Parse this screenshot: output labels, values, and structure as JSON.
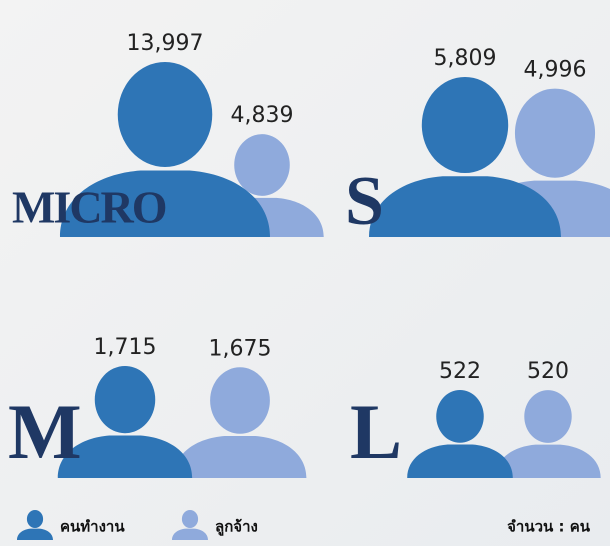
{
  "chart_data": {
    "type": "pictograph",
    "categories": [
      "Micro",
      "S",
      "M",
      "L"
    ],
    "series": [
      {
        "name": "คนทำงาน",
        "color": "#2e75b6",
        "values": [
          13997,
          5809,
          1715,
          522
        ],
        "value_labels": [
          "13,997",
          "5,809",
          "1,715",
          "522"
        ]
      },
      {
        "name": "ลูกจ้าง",
        "color": "#8faadc",
        "values": [
          4839,
          4996,
          1675,
          520
        ],
        "value_labels": [
          "4,839",
          "4,996",
          "1,675",
          "520"
        ]
      }
    ],
    "unit_note": "จำนวน : คน"
  }
}
